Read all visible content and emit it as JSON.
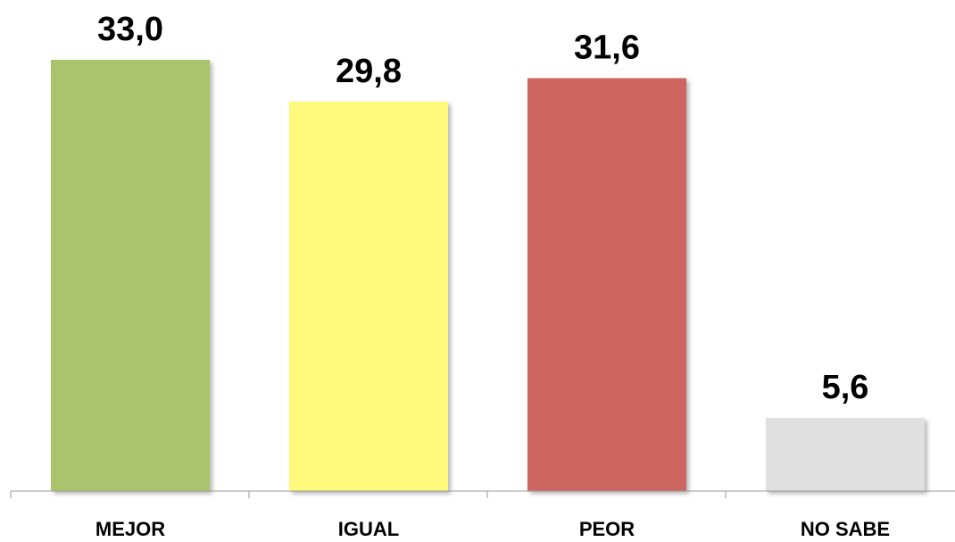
{
  "chart_data": {
    "type": "bar",
    "categories": [
      "MEJOR",
      "IGUAL",
      "PEOR",
      "NO SABE"
    ],
    "values": [
      33.0,
      29.8,
      31.6,
      5.6
    ],
    "value_labels": [
      "33,0",
      "29,8",
      "31,6",
      "5,6"
    ],
    "colors": [
      "#a9c46c",
      "#fffa7c",
      "#cd6660",
      "#e0e0e0"
    ],
    "axis_color": "#999999",
    "ylim": [
      0,
      33.0
    ],
    "grid": false,
    "legend": "none",
    "title": "",
    "xlabel": "",
    "ylabel": ""
  }
}
